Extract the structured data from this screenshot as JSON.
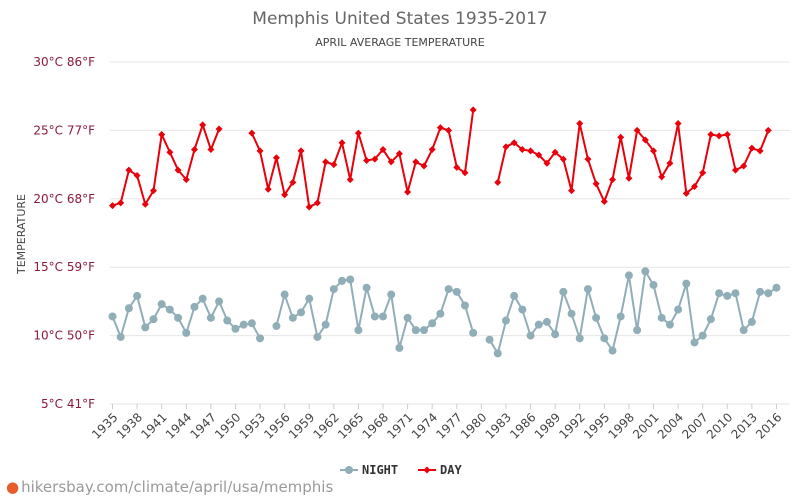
{
  "chart_data": {
    "type": "line",
    "title": "Memphis United States 1935-2017",
    "subtitle": "APRIL AVERAGE TEMPERATURE",
    "ylabel": "TEMPERATURE",
    "ylim": [
      5,
      30
    ],
    "xlim": [
      1935,
      2017
    ],
    "y_ticks": [
      {
        "value": 5,
        "label": "5°C 41°F"
      },
      {
        "value": 10,
        "label": "10°C 50°F"
      },
      {
        "value": 15,
        "label": "15°C 59°F"
      },
      {
        "value": 20,
        "label": "20°C 68°F"
      },
      {
        "value": 25,
        "label": "25°C 77°F"
      },
      {
        "value": 30,
        "label": "30°C 86°F"
      }
    ],
    "x_ticks": [
      1935,
      1938,
      1941,
      1944,
      1947,
      1950,
      1953,
      1956,
      1959,
      1962,
      1965,
      1968,
      1971,
      1974,
      1977,
      1980,
      1983,
      1986,
      1989,
      1992,
      1995,
      1998,
      2001,
      2004,
      2007,
      2010,
      2013,
      2016
    ],
    "legend_position": "bottom-center",
    "grid": true,
    "series": [
      {
        "name": "NIGHT",
        "color": "#90aeb8",
        "marker": "circle",
        "values": [
          [
            1935,
            11.4
          ],
          [
            1936,
            9.9
          ],
          [
            1937,
            12.0
          ],
          [
            1938,
            12.9
          ],
          [
            1939,
            10.6
          ],
          [
            1940,
            11.2
          ],
          [
            1941,
            12.3
          ],
          [
            1942,
            11.9
          ],
          [
            1943,
            11.3
          ],
          [
            1944,
            10.2
          ],
          [
            1945,
            12.1
          ],
          [
            1946,
            12.7
          ],
          [
            1947,
            11.3
          ],
          [
            1948,
            12.5
          ],
          [
            1949,
            11.1
          ],
          [
            1950,
            10.5
          ],
          [
            1951,
            10.8
          ],
          [
            1952,
            10.9
          ],
          [
            1953,
            9.8
          ],
          [
            1955,
            10.7
          ],
          [
            1956,
            13.0
          ],
          [
            1957,
            11.3
          ],
          [
            1958,
            11.7
          ],
          [
            1959,
            12.7
          ],
          [
            1960,
            9.9
          ],
          [
            1961,
            10.8
          ],
          [
            1962,
            13.4
          ],
          [
            1963,
            14.0
          ],
          [
            1964,
            14.1
          ],
          [
            1965,
            10.4
          ],
          [
            1966,
            13.5
          ],
          [
            1967,
            11.4
          ],
          [
            1968,
            11.4
          ],
          [
            1969,
            13.0
          ],
          [
            1970,
            9.1
          ],
          [
            1971,
            11.3
          ],
          [
            1972,
            10.4
          ],
          [
            1973,
            10.4
          ],
          [
            1974,
            10.9
          ],
          [
            1975,
            11.6
          ],
          [
            1976,
            13.4
          ],
          [
            1977,
            13.2
          ],
          [
            1978,
            12.2
          ],
          [
            1979,
            10.2
          ],
          [
            1981,
            9.7
          ],
          [
            1982,
            8.7
          ],
          [
            1983,
            11.1
          ],
          [
            1984,
            12.9
          ],
          [
            1985,
            11.9
          ],
          [
            1986,
            10.0
          ],
          [
            1987,
            10.8
          ],
          [
            1988,
            11.0
          ],
          [
            1989,
            10.1
          ],
          [
            1990,
            13.2
          ],
          [
            1991,
            11.6
          ],
          [
            1992,
            9.8
          ],
          [
            1993,
            13.4
          ],
          [
            1994,
            11.3
          ],
          [
            1995,
            9.8
          ],
          [
            1996,
            8.9
          ],
          [
            1997,
            11.4
          ],
          [
            1998,
            14.4
          ],
          [
            1999,
            10.4
          ],
          [
            2000,
            14.7
          ],
          [
            2001,
            13.7
          ],
          [
            2002,
            11.3
          ],
          [
            2003,
            10.8
          ],
          [
            2004,
            11.9
          ],
          [
            2005,
            13.8
          ],
          [
            2006,
            9.5
          ],
          [
            2007,
            10.0
          ],
          [
            2008,
            11.2
          ],
          [
            2009,
            13.1
          ],
          [
            2010,
            12.9
          ],
          [
            2011,
            13.1
          ],
          [
            2012,
            10.4
          ],
          [
            2013,
            11.0
          ],
          [
            2014,
            13.2
          ],
          [
            2015,
            13.1
          ],
          [
            2016,
            13.5
          ]
        ]
      },
      {
        "name": "DAY",
        "color": "#e8000b",
        "marker": "diamond",
        "values": [
          [
            1935,
            19.5
          ],
          [
            1936,
            19.7
          ],
          [
            1937,
            22.1
          ],
          [
            1938,
            21.7
          ],
          [
            1939,
            19.6
          ],
          [
            1940,
            20.6
          ],
          [
            1941,
            24.7
          ],
          [
            1942,
            23.4
          ],
          [
            1943,
            22.1
          ],
          [
            1944,
            21.4
          ],
          [
            1945,
            23.6
          ],
          [
            1946,
            25.4
          ],
          [
            1947,
            23.6
          ],
          [
            1948,
            25.1
          ],
          [
            1952,
            24.8
          ],
          [
            1953,
            23.5
          ],
          [
            1954,
            20.7
          ],
          [
            1955,
            23.0
          ],
          [
            1956,
            20.3
          ],
          [
            1957,
            21.2
          ],
          [
            1958,
            23.5
          ],
          [
            1959,
            19.4
          ],
          [
            1960,
            19.7
          ],
          [
            1961,
            22.7
          ],
          [
            1962,
            22.5
          ],
          [
            1963,
            24.1
          ],
          [
            1964,
            21.4
          ],
          [
            1965,
            24.8
          ],
          [
            1966,
            22.8
          ],
          [
            1967,
            22.9
          ],
          [
            1968,
            23.6
          ],
          [
            1969,
            22.7
          ],
          [
            1970,
            23.3
          ],
          [
            1971,
            20.5
          ],
          [
            1972,
            22.7
          ],
          [
            1973,
            22.4
          ],
          [
            1974,
            23.6
          ],
          [
            1975,
            25.2
          ],
          [
            1976,
            25.0
          ],
          [
            1977,
            22.3
          ],
          [
            1978,
            21.9
          ],
          [
            1979,
            26.5
          ],
          [
            1982,
            21.2
          ],
          [
            1983,
            23.8
          ],
          [
            1984,
            24.1
          ],
          [
            1985,
            23.6
          ],
          [
            1986,
            23.5
          ],
          [
            1987,
            23.2
          ],
          [
            1988,
            22.6
          ],
          [
            1989,
            23.4
          ],
          [
            1990,
            22.9
          ],
          [
            1991,
            20.6
          ],
          [
            1992,
            25.5
          ],
          [
            1993,
            22.9
          ],
          [
            1994,
            21.1
          ],
          [
            1995,
            19.8
          ],
          [
            1996,
            21.4
          ],
          [
            1997,
            24.5
          ],
          [
            1998,
            21.5
          ],
          [
            1999,
            25.0
          ],
          [
            2000,
            24.3
          ],
          [
            2001,
            23.5
          ],
          [
            2002,
            21.6
          ],
          [
            2003,
            22.6
          ],
          [
            2004,
            25.5
          ],
          [
            2005,
            20.4
          ],
          [
            2006,
            20.9
          ],
          [
            2007,
            21.9
          ],
          [
            2008,
            24.7
          ],
          [
            2009,
            24.6
          ],
          [
            2010,
            24.7
          ],
          [
            2011,
            22.1
          ],
          [
            2012,
            22.4
          ],
          [
            2013,
            23.7
          ],
          [
            2014,
            23.5
          ],
          [
            2015,
            25.0
          ]
        ]
      }
    ]
  },
  "footer": {
    "text": "hikersbay.com/climate/april/usa/memphis"
  }
}
